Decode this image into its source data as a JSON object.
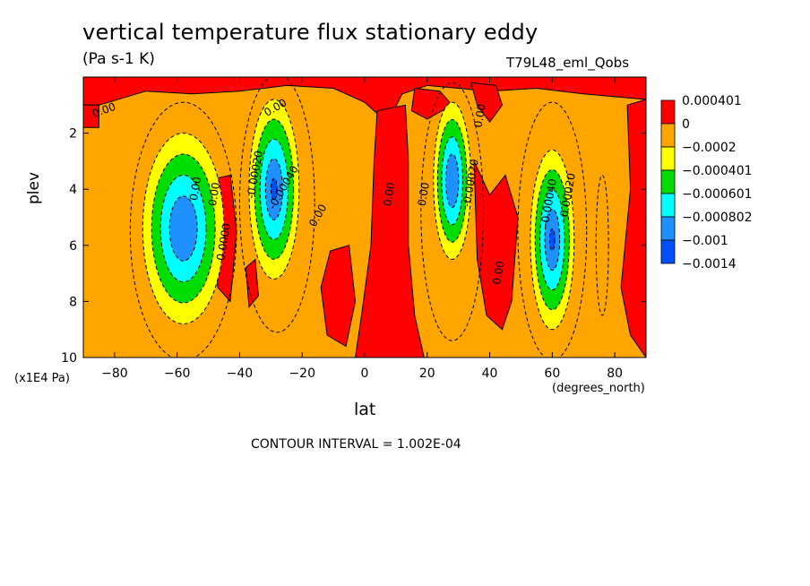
{
  "chart_data": {
    "type": "contour",
    "title": "vertical temperature flux stationary eddy",
    "units": "(Pa s-1 K)",
    "run_label": "T79L48_eml_Qobs",
    "xlabel": "lat",
    "x_units": "(degrees_north)",
    "ylabel": "plev",
    "y_units": "(x1E4 Pa)",
    "xlim": [
      -90,
      90
    ],
    "ylim": [
      10,
      0
    ],
    "x_ticks": [
      -80,
      -60,
      -40,
      -20,
      0,
      20,
      40,
      60,
      80
    ],
    "y_ticks": [
      2,
      4,
      6,
      8,
      10
    ],
    "contour_interval_text": "CONTOUR INTERVAL = 1.002E-04",
    "legend_levels": [
      "0.000401",
      "0",
      "-0.0002",
      "-0.000401",
      "-0.000601",
      "-0.000802",
      "-0.001",
      "-0.0014"
    ],
    "legend_colors": [
      "#ff0000",
      "#ffa500",
      "#ffff00",
      "#00dd00",
      "#00ffff",
      "#1e90ff",
      "#0050ff"
    ],
    "negative_cells": [
      {
        "lat": -58,
        "plev": 5.5,
        "min": -0.0007
      },
      {
        "lat": -28,
        "plev": 4.0,
        "min": -0.0009
      },
      {
        "lat": 28,
        "plev": 3.7,
        "min": -0.0009
      },
      {
        "lat": 60,
        "plev": 5.8,
        "min": -0.0011
      }
    ],
    "positive_cells": [
      {
        "lat": -46,
        "plev": 5.0
      },
      {
        "lat": 8,
        "plev": 5.0
      },
      {
        "lat": 40,
        "plev": 6.0
      },
      {
        "lat": 85,
        "plev": 5.0
      }
    ],
    "contour_labels": [
      "0.00",
      "0.00",
      "0.0000",
      "-0.00020",
      "-0.00040",
      "0.00",
      "0.00",
      "0.00",
      "0.00",
      "-0.00020",
      "0.00",
      "0.00",
      "-0.00040",
      "-0.00020",
      "0.00"
    ]
  }
}
